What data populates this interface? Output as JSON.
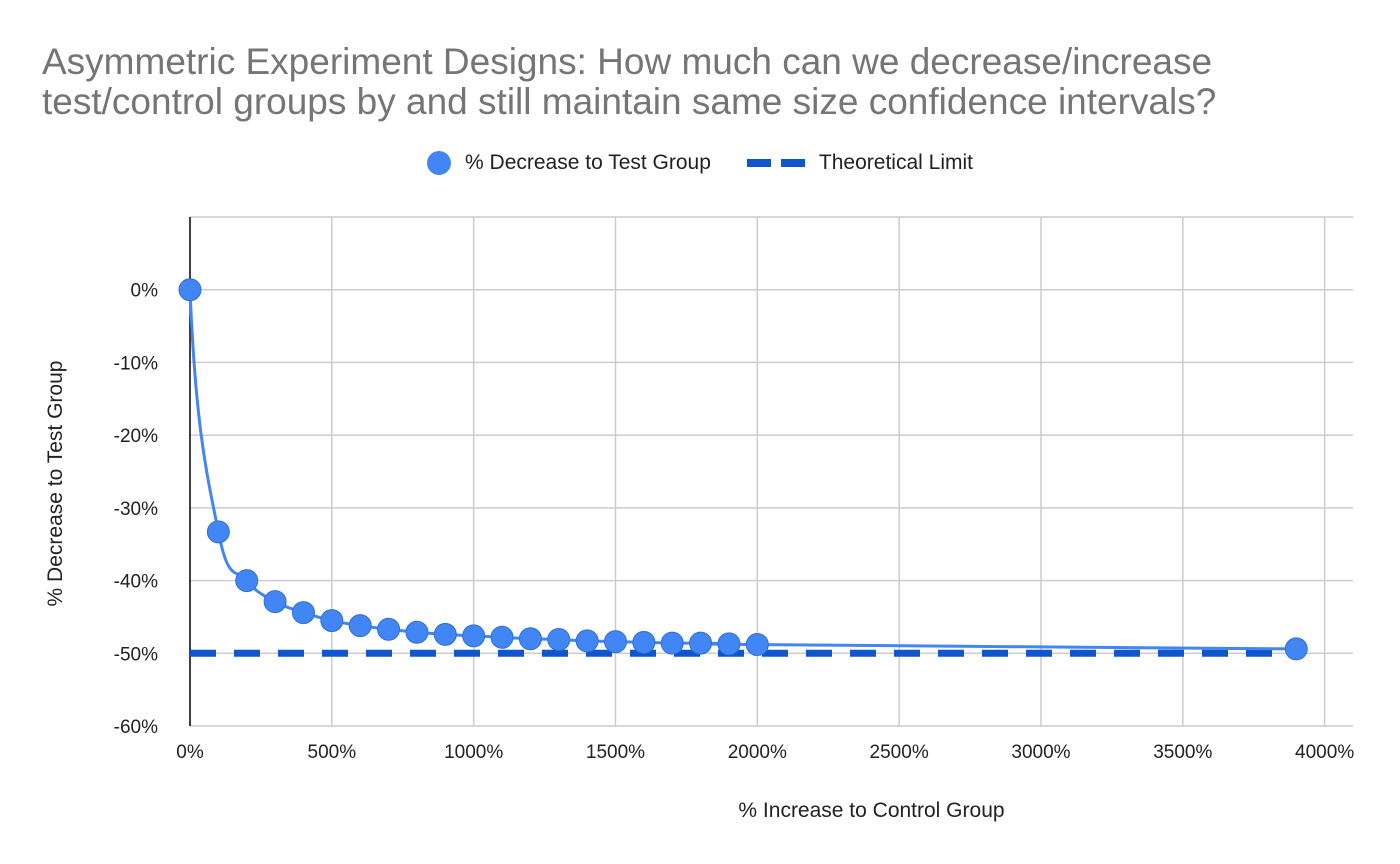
{
  "chart_data": {
    "type": "line",
    "title": "Asymmetric Experiment Designs: How much can we decrease/increase test/control groups by and still maintain same size confidence intervals?",
    "xlabel": "% Increase to Control Group",
    "ylabel": "% Decrease to Test Group",
    "xlim": [
      0,
      4100
    ],
    "ylim": [
      -60,
      10
    ],
    "x_ticks": [
      0,
      500,
      1000,
      1500,
      2000,
      2500,
      3000,
      3500,
      4000
    ],
    "x_tick_labels": [
      "0%",
      "500%",
      "1000%",
      "1500%",
      "2000%",
      "2500%",
      "3000%",
      "3500%",
      "4000%"
    ],
    "y_ticks": [
      0,
      -10,
      -20,
      -30,
      -40,
      -50,
      -60
    ],
    "y_tick_labels": [
      "0%",
      "-10%",
      "-20%",
      "-30%",
      "-40%",
      "-50%",
      "-60%"
    ],
    "grid": true,
    "legend_position": "top",
    "series": [
      {
        "name": "% Decrease to Test Group",
        "style": "smooth-line-with-markers",
        "color": "#4285f4",
        "x": [
          0,
          100,
          200,
          300,
          400,
          500,
          600,
          700,
          800,
          900,
          1000,
          1100,
          1200,
          1300,
          1400,
          1500,
          1600,
          1700,
          1800,
          1900,
          2000,
          3900
        ],
        "y": [
          0,
          -33.3,
          -40,
          -42.9,
          -44.4,
          -45.5,
          -46.2,
          -46.7,
          -47.1,
          -47.4,
          -47.6,
          -47.8,
          -48,
          -48.1,
          -48.3,
          -48.4,
          -48.5,
          -48.6,
          -48.6,
          -48.7,
          -48.8,
          -49.4
        ]
      },
      {
        "name": "Theoretical Limit",
        "style": "dashed-line",
        "color": "#1155cc",
        "x": [
          0,
          3900
        ],
        "y": [
          -50,
          -50
        ]
      }
    ]
  }
}
